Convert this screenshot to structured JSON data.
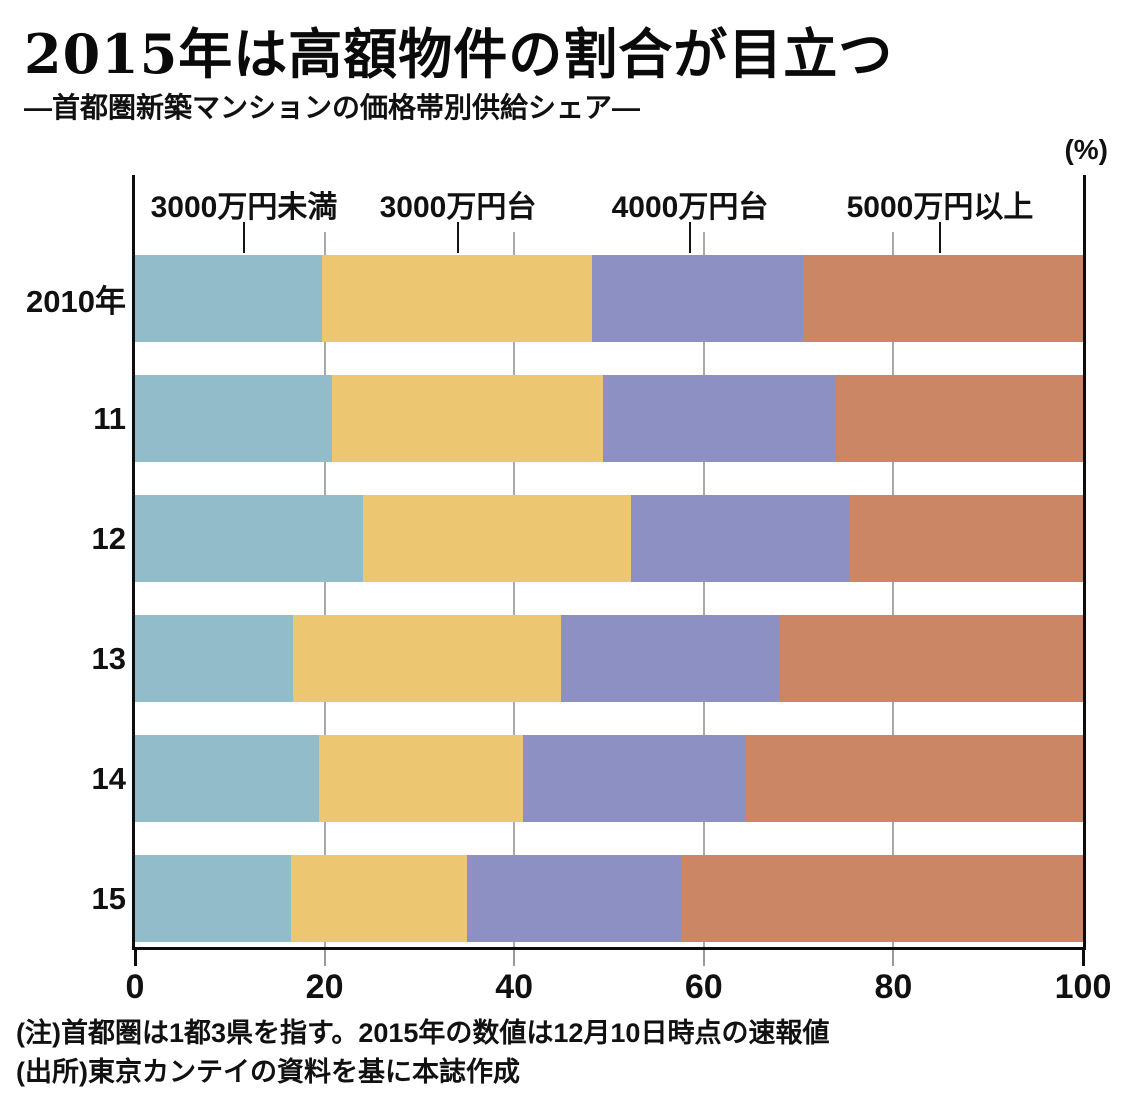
{
  "header": {
    "title": "2015年は高額物件の割合が目立つ",
    "subtitle": "―首都圏新築マンションの価格帯別供給シェア―",
    "unit_label": "(%)"
  },
  "chart_data": {
    "type": "bar",
    "orientation": "horizontal",
    "stacked": true,
    "title": "2015年は高額物件の割合が目立つ",
    "subtitle": "―首都圏新築マンションの価格帯別供給シェア―",
    "xlabel": "(%)",
    "ylabel": "",
    "xlim": [
      0,
      100
    ],
    "x_ticks": [
      0,
      20,
      40,
      60,
      80,
      100
    ],
    "grid": true,
    "legend_position": "top",
    "categories": [
      "2010年",
      "11",
      "12",
      "13",
      "14",
      "15"
    ],
    "series": [
      {
        "name": "3000万円未満",
        "color": "#93bccb",
        "values": [
          19.7,
          20.8,
          24.1,
          16.7,
          19.4,
          16.5
        ]
      },
      {
        "name": "3000万円台",
        "color": "#edc671",
        "values": [
          28.5,
          28.6,
          28.2,
          28.2,
          21.5,
          18.5
        ]
      },
      {
        "name": "4000万円台",
        "color": "#8c90c2",
        "values": [
          22.3,
          24.5,
          23.1,
          23.1,
          23.4,
          22.7
        ]
      },
      {
        "name": "5000万円以上",
        "color": "#cb8765",
        "values": [
          29.5,
          26.1,
          24.6,
          32.0,
          35.7,
          42.3
        ]
      }
    ]
  },
  "notes": {
    "note1": "(注)首都圏は1都3県を指す。2015年の数値は12月10日時点の速報値",
    "note2": "(出所)東京カンテイの資料を基に本誌作成"
  },
  "colors": {
    "axis": "#0d0d0d",
    "gridline": "#a9a9a9",
    "text": "#111111"
  }
}
